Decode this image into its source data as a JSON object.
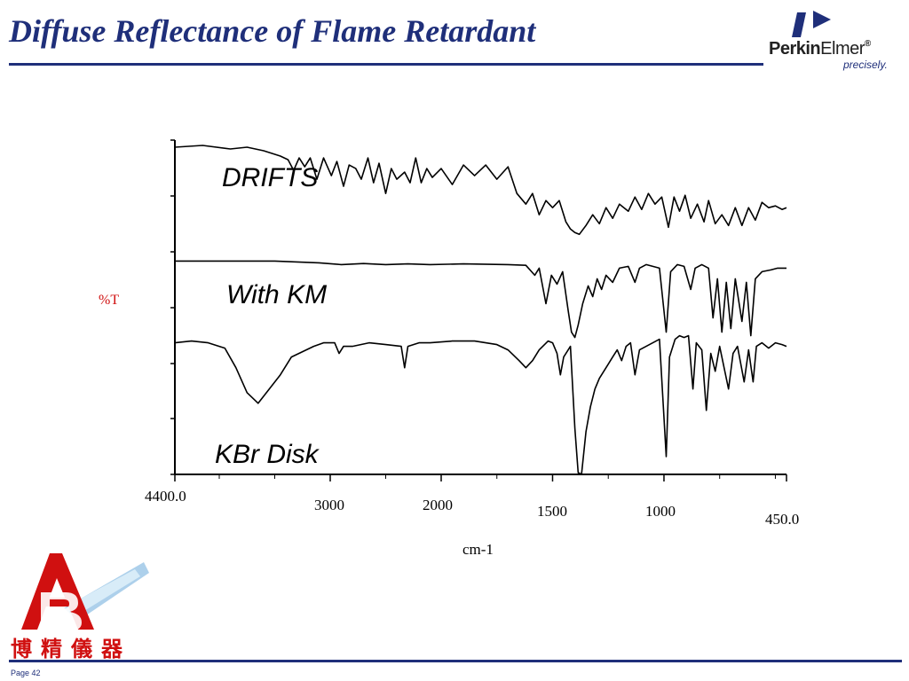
{
  "slide": {
    "title": "Diffuse Reflectance of Flame Retardant",
    "page": "Page 42"
  },
  "logos": {
    "perkinelmer": {
      "word_bold": "Perkin",
      "word_light": "Elmer",
      "reg": "®",
      "tagline": "precisely."
    },
    "bojing": {
      "chars": "博精儀器"
    }
  },
  "chart_data": {
    "type": "line",
    "xlabel": "cm-1",
    "ylabel": "%T",
    "xlim": [
      4400.0,
      450.0
    ],
    "x_ticks": [
      "4400.0",
      "3000",
      "2000",
      "1500",
      "1000",
      "450.0"
    ],
    "series": [
      {
        "name": "DRIFTS",
        "points": [
          [
            4400,
            9.2
          ],
          [
            4150,
            9.25
          ],
          [
            3900,
            9.15
          ],
          [
            3750,
            9.2
          ],
          [
            3600,
            9.1
          ],
          [
            3450,
            8.95
          ],
          [
            3380,
            8.85
          ],
          [
            3330,
            8.55
          ],
          [
            3280,
            8.9
          ],
          [
            3230,
            8.65
          ],
          [
            3180,
            8.9
          ],
          [
            3120,
            8.3
          ],
          [
            3060,
            8.9
          ],
          [
            2990,
            8.4
          ],
          [
            2940,
            8.8
          ],
          [
            2880,
            8.1
          ],
          [
            2830,
            8.7
          ],
          [
            2770,
            8.6
          ],
          [
            2720,
            8.3
          ],
          [
            2660,
            8.9
          ],
          [
            2610,
            8.2
          ],
          [
            2560,
            8.75
          ],
          [
            2500,
            7.9
          ],
          [
            2450,
            8.6
          ],
          [
            2400,
            8.3
          ],
          [
            2330,
            8.5
          ],
          [
            2280,
            8.2
          ],
          [
            2230,
            8.9
          ],
          [
            2180,
            8.2
          ],
          [
            2130,
            8.6
          ],
          [
            2080,
            8.35
          ],
          [
            2000,
            8.6
          ],
          [
            1950,
            8.15
          ],
          [
            1900,
            8.7
          ],
          [
            1850,
            8.4
          ],
          [
            1800,
            8.7
          ],
          [
            1750,
            8.3
          ],
          [
            1700,
            8.65
          ],
          [
            1660,
            7.9
          ],
          [
            1620,
            7.6
          ],
          [
            1590,
            7.9
          ],
          [
            1560,
            7.3
          ],
          [
            1530,
            7.7
          ],
          [
            1500,
            7.5
          ],
          [
            1470,
            7.7
          ],
          [
            1440,
            7.1
          ],
          [
            1420,
            6.9
          ],
          [
            1400,
            6.8
          ],
          [
            1380,
            6.75
          ],
          [
            1350,
            7.0
          ],
          [
            1320,
            7.3
          ],
          [
            1290,
            7.05
          ],
          [
            1260,
            7.5
          ],
          [
            1230,
            7.2
          ],
          [
            1200,
            7.6
          ],
          [
            1160,
            7.4
          ],
          [
            1130,
            7.8
          ],
          [
            1100,
            7.45
          ],
          [
            1070,
            7.9
          ],
          [
            1040,
            7.6
          ],
          [
            1010,
            7.8
          ],
          [
            980,
            6.95
          ],
          [
            955,
            7.8
          ],
          [
            930,
            7.4
          ],
          [
            905,
            7.85
          ],
          [
            880,
            7.2
          ],
          [
            850,
            7.6
          ],
          [
            820,
            7.1
          ],
          [
            800,
            7.7
          ],
          [
            770,
            7.05
          ],
          [
            740,
            7.3
          ],
          [
            710,
            7.0
          ],
          [
            680,
            7.5
          ],
          [
            650,
            7.0
          ],
          [
            620,
            7.5
          ],
          [
            590,
            7.15
          ],
          [
            560,
            7.65
          ],
          [
            530,
            7.5
          ],
          [
            500,
            7.55
          ],
          [
            470,
            7.45
          ],
          [
            450,
            7.5
          ]
        ]
      },
      {
        "name": "With KM",
        "points": [
          [
            4400,
            6.0
          ],
          [
            4200,
            6.0
          ],
          [
            3850,
            6.0
          ],
          [
            3500,
            6.0
          ],
          [
            3350,
            5.98
          ],
          [
            3100,
            5.95
          ],
          [
            2900,
            5.9
          ],
          [
            2700,
            5.93
          ],
          [
            2500,
            5.9
          ],
          [
            2300,
            5.92
          ],
          [
            2100,
            5.9
          ],
          [
            1900,
            5.92
          ],
          [
            1700,
            5.9
          ],
          [
            1620,
            5.88
          ],
          [
            1580,
            5.6
          ],
          [
            1560,
            5.8
          ],
          [
            1530,
            4.8
          ],
          [
            1505,
            5.6
          ],
          [
            1480,
            5.35
          ],
          [
            1455,
            5.7
          ],
          [
            1430,
            4.6
          ],
          [
            1415,
            4.0
          ],
          [
            1400,
            3.85
          ],
          [
            1385,
            4.2
          ],
          [
            1365,
            4.8
          ],
          [
            1340,
            5.3
          ],
          [
            1320,
            5.0
          ],
          [
            1300,
            5.5
          ],
          [
            1280,
            5.2
          ],
          [
            1260,
            5.6
          ],
          [
            1230,
            5.4
          ],
          [
            1200,
            5.8
          ],
          [
            1160,
            5.85
          ],
          [
            1130,
            5.4
          ],
          [
            1110,
            5.8
          ],
          [
            1080,
            5.9
          ],
          [
            1050,
            5.85
          ],
          [
            1020,
            5.8
          ],
          [
            990,
            4.0
          ],
          [
            970,
            5.7
          ],
          [
            940,
            5.9
          ],
          [
            910,
            5.85
          ],
          [
            880,
            5.2
          ],
          [
            860,
            5.8
          ],
          [
            830,
            5.9
          ],
          [
            800,
            5.8
          ],
          [
            780,
            4.4
          ],
          [
            760,
            5.5
          ],
          [
            740,
            4.0
          ],
          [
            720,
            5.4
          ],
          [
            700,
            4.1
          ],
          [
            680,
            5.5
          ],
          [
            650,
            4.3
          ],
          [
            630,
            5.4
          ],
          [
            610,
            3.9
          ],
          [
            590,
            5.5
          ],
          [
            560,
            5.7
          ],
          [
            520,
            5.75
          ],
          [
            490,
            5.8
          ],
          [
            450,
            5.8
          ]
        ]
      },
      {
        "name": "KBr Disk",
        "points": [
          [
            4400,
            3.7
          ],
          [
            4250,
            3.75
          ],
          [
            4100,
            3.7
          ],
          [
            3950,
            3.55
          ],
          [
            3850,
            3.0
          ],
          [
            3750,
            2.3
          ],
          [
            3650,
            2.0
          ],
          [
            3550,
            2.4
          ],
          [
            3450,
            2.8
          ],
          [
            3350,
            3.3
          ],
          [
            3250,
            3.45
          ],
          [
            3150,
            3.6
          ],
          [
            3060,
            3.7
          ],
          [
            2960,
            3.7
          ],
          [
            2920,
            3.4
          ],
          [
            2880,
            3.6
          ],
          [
            2800,
            3.6
          ],
          [
            2650,
            3.7
          ],
          [
            2500,
            3.65
          ],
          [
            2360,
            3.6
          ],
          [
            2330,
            3.0
          ],
          [
            2300,
            3.6
          ],
          [
            2200,
            3.7
          ],
          [
            2100,
            3.7
          ],
          [
            1950,
            3.75
          ],
          [
            1850,
            3.75
          ],
          [
            1750,
            3.65
          ],
          [
            1700,
            3.5
          ],
          [
            1650,
            3.2
          ],
          [
            1620,
            3.0
          ],
          [
            1590,
            3.2
          ],
          [
            1560,
            3.5
          ],
          [
            1520,
            3.75
          ],
          [
            1500,
            3.7
          ],
          [
            1480,
            3.4
          ],
          [
            1465,
            2.8
          ],
          [
            1450,
            3.3
          ],
          [
            1420,
            3.6
          ],
          [
            1400,
            1.3
          ],
          [
            1385,
            0.05
          ],
          [
            1370,
            0.0
          ],
          [
            1350,
            1.2
          ],
          [
            1330,
            1.9
          ],
          [
            1310,
            2.4
          ],
          [
            1290,
            2.7
          ],
          [
            1270,
            2.9
          ],
          [
            1250,
            3.1
          ],
          [
            1230,
            3.3
          ],
          [
            1210,
            3.5
          ],
          [
            1190,
            3.2
          ],
          [
            1170,
            3.6
          ],
          [
            1150,
            3.7
          ],
          [
            1130,
            2.8
          ],
          [
            1110,
            3.5
          ],
          [
            1080,
            3.6
          ],
          [
            1050,
            3.7
          ],
          [
            1020,
            3.8
          ],
          [
            990,
            0.5
          ],
          [
            975,
            3.3
          ],
          [
            950,
            3.8
          ],
          [
            930,
            3.9
          ],
          [
            910,
            3.85
          ],
          [
            890,
            3.9
          ],
          [
            870,
            2.4
          ],
          [
            855,
            3.7
          ],
          [
            830,
            3.5
          ],
          [
            810,
            1.8
          ],
          [
            790,
            3.4
          ],
          [
            770,
            2.9
          ],
          [
            750,
            3.6
          ],
          [
            730,
            3.0
          ],
          [
            710,
            2.4
          ],
          [
            690,
            3.4
          ],
          [
            670,
            3.6
          ],
          [
            640,
            2.6
          ],
          [
            620,
            3.5
          ],
          [
            600,
            2.6
          ],
          [
            585,
            3.6
          ],
          [
            560,
            3.7
          ],
          [
            530,
            3.55
          ],
          [
            500,
            3.7
          ],
          [
            470,
            3.65
          ],
          [
            450,
            3.6
          ]
        ]
      }
    ]
  }
}
